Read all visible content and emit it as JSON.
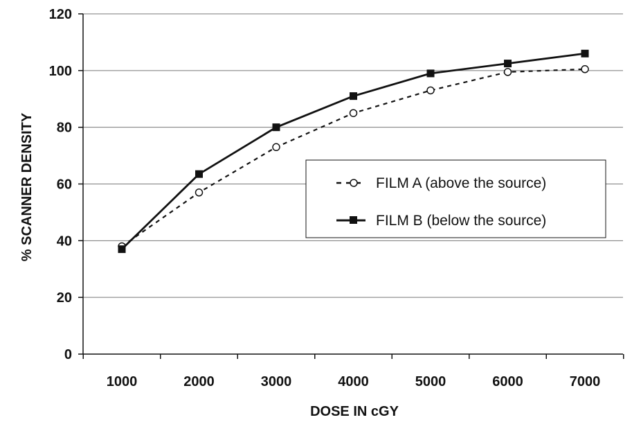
{
  "chart_data": {
    "type": "line",
    "title": "",
    "xlabel": "DOSE IN cGY",
    "ylabel": "% SCANNER  DENSITY",
    "x": [
      1000,
      2000,
      3000,
      4000,
      5000,
      6000,
      7000
    ],
    "x_tick_labels": [
      "1000",
      "2000",
      "3000",
      "4000",
      "5000",
      "6000",
      "7000"
    ],
    "y_tick_labels": [
      "0",
      "20",
      "40",
      "60",
      "80",
      "100",
      "120"
    ],
    "y_ticks": [
      0,
      20,
      40,
      60,
      80,
      100,
      120
    ],
    "ylim": [
      0,
      120
    ],
    "grid": "horizontal",
    "legend_position": "center-right",
    "series": [
      {
        "name": "FILM A (above the source)",
        "values": [
          38,
          57,
          73,
          85,
          93,
          99.5,
          100.5
        ],
        "line_style": "dashed",
        "marker": "open-circle",
        "color": "#111111"
      },
      {
        "name": "FILM B (below the source)",
        "values": [
          37,
          63.5,
          80,
          91,
          99,
          102.5,
          106
        ],
        "line_style": "solid",
        "marker": "filled-square",
        "color": "#111111"
      }
    ]
  }
}
